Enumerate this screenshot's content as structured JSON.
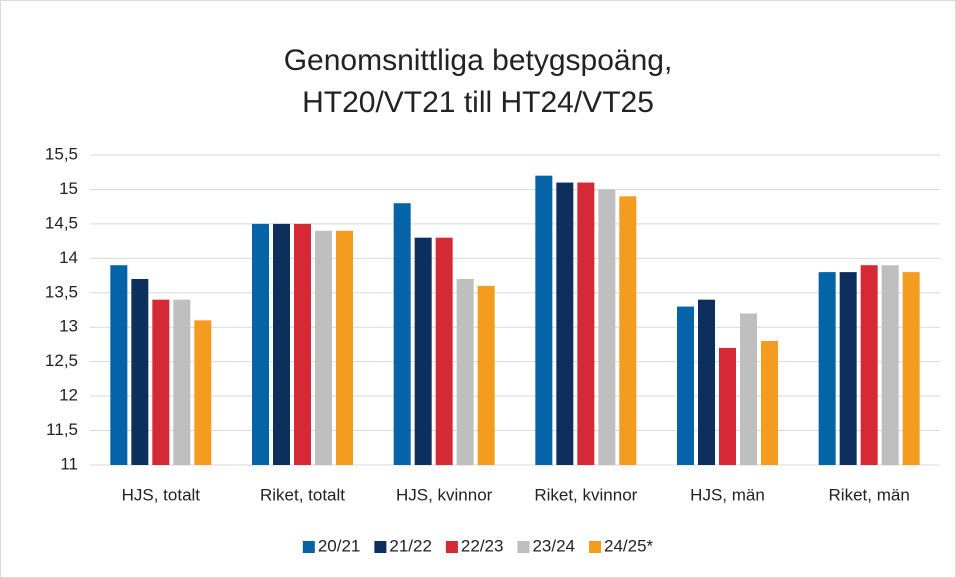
{
  "chart_data": {
    "type": "bar",
    "title": [
      "Genomsnittliga betygspoäng,",
      "HT20/VT21 till HT24/VT25"
    ],
    "categories": [
      "HJS, totalt",
      "Riket, totalt",
      "HJS, kvinnor",
      "Riket, kvinnor",
      "HJS, män",
      "Riket, män"
    ],
    "series": [
      {
        "name": "20/21",
        "color": "#0563a8",
        "values": [
          13.9,
          14.5,
          14.8,
          15.2,
          13.3,
          13.8
        ]
      },
      {
        "name": "21/22",
        "color": "#0d2f5e",
        "values": [
          13.7,
          14.5,
          14.3,
          15.1,
          13.4,
          13.8
        ]
      },
      {
        "name": "22/23",
        "color": "#d52a35",
        "values": [
          13.4,
          14.5,
          14.3,
          15.1,
          12.7,
          13.9
        ]
      },
      {
        "name": "23/24",
        "color": "#bfbfbf",
        "values": [
          13.4,
          14.4,
          13.7,
          15.0,
          13.2,
          13.9
        ]
      },
      {
        "name": "24/25*",
        "color": "#f39c1f",
        "values": [
          13.1,
          14.4,
          13.6,
          14.9,
          12.8,
          13.8
        ]
      }
    ],
    "ylim": [
      11,
      15.5
    ],
    "yticks": [
      11,
      {
        "value": 11.5,
        "label": "11,5"
      },
      12,
      {
        "value": 12.5,
        "label": "12,5"
      },
      13,
      {
        "value": 13.5,
        "label": "13,5"
      },
      14,
      {
        "value": 14.5,
        "label": "14,5"
      },
      15,
      {
        "value": 15.5,
        "label": "15,5"
      }
    ],
    "grid": true,
    "legend": "bottom"
  }
}
